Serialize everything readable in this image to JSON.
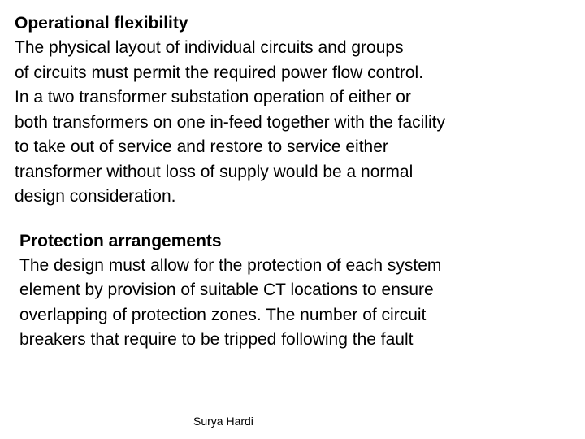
{
  "section1": {
    "heading": "Operational flexibility",
    "line1": "The physical layout of individual circuits and groups",
    "line2": "of circuits must permit the required power flow control.",
    "line3": "In a two transformer substation operation of either or",
    "line4": "both transformers on one in-feed together with the facility",
    "line5": "to take out of service and restore to service either",
    "line6": "transformer without loss of supply would be a normal",
    "line7": "design consideration."
  },
  "section2": {
    "heading": "Protection arrangements",
    "line1": "The design must allow for the protection of each system",
    "line2": "element by provision of suitable CT locations to ensure",
    "line3": "overlapping of protection zones. The number of circuit",
    "line4": "breakers that require to be tripped following the fault"
  },
  "footer": {
    "author": "Surya Hardi"
  },
  "style": {
    "background_color": "#ffffff",
    "text_color": "#000000",
    "heading_fontsize": 21,
    "body_fontsize": 21,
    "footer_fontsize": 14,
    "line_height": 1.45
  }
}
